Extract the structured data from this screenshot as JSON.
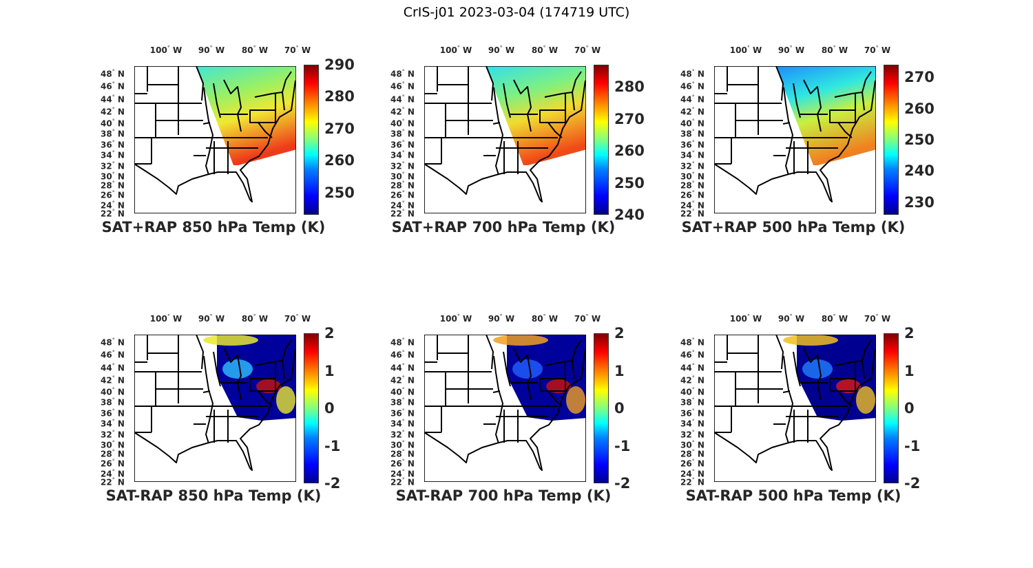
{
  "title": "CrIS-j01 2023-03-04 (174719 UTC)",
  "lon_labels": [
    "100",
    "90",
    "80",
    "70"
  ],
  "lon_suffix": "W",
  "lat_labels": [
    "48",
    "46",
    "44",
    "42",
    "40",
    "38",
    "36",
    "34",
    "32",
    "30",
    "28",
    "26",
    "24",
    "22"
  ],
  "lat_suffix": "N",
  "degree": "°",
  "panels": [
    {
      "title": "SAT+RAP 850 hPa Temp (K)",
      "ticks": [
        "290",
        "280",
        "270",
        "260",
        "250"
      ],
      "range": [
        243,
        290
      ],
      "tick_values": [
        290,
        280,
        270,
        260,
        250
      ],
      "type": "sum",
      "colors": [
        "#3fe6d6",
        "#9af064",
        "#f0e832",
        "#ee3a1a"
      ]
    },
    {
      "title": "SAT+RAP 700 hPa Temp (K)",
      "ticks": [
        "280",
        "270",
        "260",
        "250",
        "240"
      ],
      "range": [
        240,
        287
      ],
      "tick_values": [
        280,
        270,
        260,
        250,
        240
      ],
      "type": "sum",
      "colors": [
        "#2fe0f0",
        "#80f080",
        "#f0dc30",
        "#f04a18"
      ]
    },
    {
      "title": "SAT+RAP 500 hPa Temp (K)",
      "ticks": [
        "270",
        "260",
        "250",
        "240",
        "230"
      ],
      "range": [
        226,
        274
      ],
      "tick_values": [
        270,
        260,
        250,
        240,
        230
      ],
      "type": "sum",
      "colors": [
        "#1c8cff",
        "#30e8e0",
        "#c8f040",
        "#f08020"
      ]
    },
    {
      "title": "SAT-RAP 850 hPa Temp (K)",
      "ticks": [
        "2",
        "1",
        "0",
        "-1",
        "-2"
      ],
      "range": [
        -2,
        2
      ],
      "tick_values": [
        2,
        1,
        0,
        -1,
        -2
      ],
      "type": "diff",
      "colors": [
        "#00009a",
        "#30c0ff",
        "#e8e830",
        "#c01010"
      ]
    },
    {
      "title": "SAT-RAP 700 hPa Temp (K)",
      "ticks": [
        "2",
        "1",
        "0",
        "-1",
        "-2"
      ],
      "range": [
        -2,
        2
      ],
      "tick_values": [
        2,
        1,
        0,
        -1,
        -2
      ],
      "type": "diff",
      "colors": [
        "#00009a",
        "#2060ff",
        "#f0a020",
        "#c01010"
      ]
    },
    {
      "title": "SAT-RAP 500 hPa Temp (K)",
      "ticks": [
        "2",
        "1",
        "0",
        "-1",
        "-2"
      ],
      "range": [
        -2,
        2
      ],
      "tick_values": [
        2,
        1,
        0,
        -1,
        -2
      ],
      "type": "diff",
      "colors": [
        "#000090",
        "#2080ff",
        "#f0c020",
        "#d01818"
      ]
    }
  ]
}
